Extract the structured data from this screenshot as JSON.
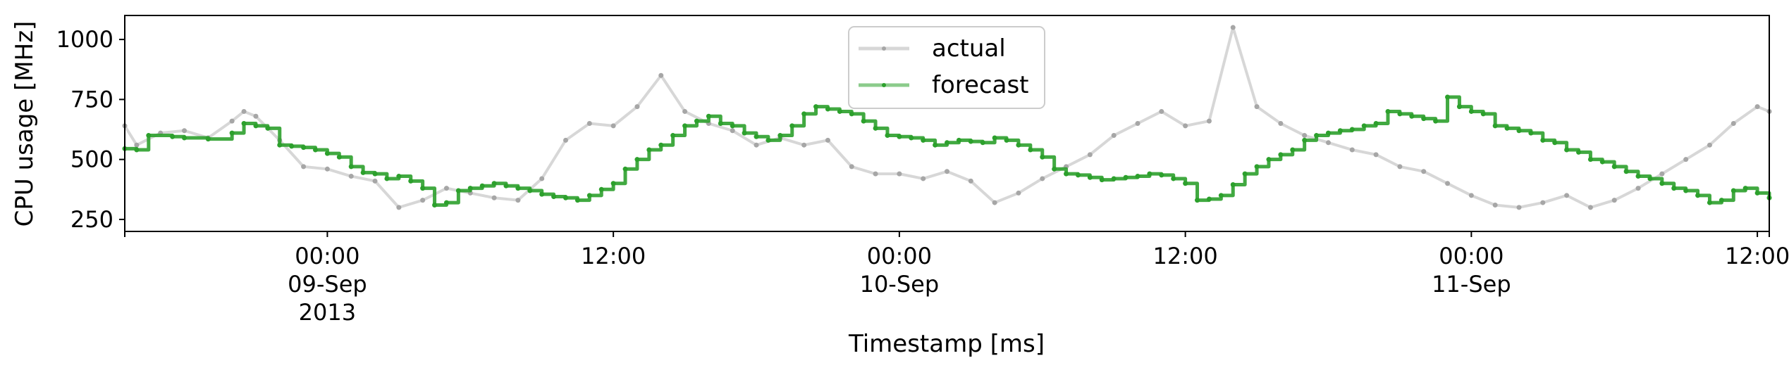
{
  "chart_data": {
    "type": "line",
    "title": "",
    "xlabel": "Timestamp [ms]",
    "ylabel": "CPU usage [MHz]",
    "x_range": [
      "2013-09-08T15:30",
      "2013-09-11T12:30"
    ],
    "ylim": [
      200,
      1100
    ],
    "grid": false,
    "legend_position": "top-center",
    "y_ticks": [
      {
        "value": 250,
        "label": "250"
      },
      {
        "value": 500,
        "label": "500"
      },
      {
        "value": 750,
        "label": "750"
      },
      {
        "value": 1000,
        "label": "1000"
      }
    ],
    "x_ticks": [
      {
        "value": "2013-09-09T00:00",
        "lines": [
          "00:00",
          "09-Sep",
          "2013"
        ]
      },
      {
        "value": "2013-09-09T12:00",
        "lines": [
          "12:00"
        ]
      },
      {
        "value": "2013-09-10T00:00",
        "lines": [
          "00:00",
          "10-Sep"
        ]
      },
      {
        "value": "2013-09-10T12:00",
        "lines": [
          "12:00"
        ]
      },
      {
        "value": "2013-09-11T00:00",
        "lines": [
          "00:00",
          "11-Sep"
        ]
      },
      {
        "value": "2013-09-11T12:00",
        "lines": [
          "12:00"
        ]
      }
    ],
    "series": [
      {
        "name": "actual",
        "color": "#a6a6a6",
        "x": [
          "2013-09-08T15:30",
          "2013-09-08T16:00",
          "2013-09-08T17:00",
          "2013-09-08T18:00",
          "2013-09-08T19:00",
          "2013-09-08T20:00",
          "2013-09-08T20:30",
          "2013-09-08T21:00",
          "2013-09-08T22:00",
          "2013-09-08T23:00",
          "2013-09-09T00:00",
          "2013-09-09T01:00",
          "2013-09-09T02:00",
          "2013-09-09T03:00",
          "2013-09-09T04:00",
          "2013-09-09T05:00",
          "2013-09-09T06:00",
          "2013-09-09T07:00",
          "2013-09-09T08:00",
          "2013-09-09T09:00",
          "2013-09-09T10:00",
          "2013-09-09T11:00",
          "2013-09-09T12:00",
          "2013-09-09T13:00",
          "2013-09-09T14:00",
          "2013-09-09T15:00",
          "2013-09-09T16:00",
          "2013-09-09T17:00",
          "2013-09-09T18:00",
          "2013-09-09T19:00",
          "2013-09-09T20:00",
          "2013-09-09T21:00",
          "2013-09-09T22:00",
          "2013-09-09T23:00",
          "2013-09-10T00:00",
          "2013-09-10T01:00",
          "2013-09-10T02:00",
          "2013-09-10T03:00",
          "2013-09-10T04:00",
          "2013-09-10T05:00",
          "2013-09-10T06:00",
          "2013-09-10T07:00",
          "2013-09-10T08:00",
          "2013-09-10T09:00",
          "2013-09-10T10:00",
          "2013-09-10T11:00",
          "2013-09-10T12:00",
          "2013-09-10T13:00",
          "2013-09-10T14:00",
          "2013-09-10T15:00",
          "2013-09-10T16:00",
          "2013-09-10T17:00",
          "2013-09-10T18:00",
          "2013-09-10T19:00",
          "2013-09-10T20:00",
          "2013-09-10T21:00",
          "2013-09-10T22:00",
          "2013-09-10T23:00",
          "2013-09-11T00:00",
          "2013-09-11T01:00",
          "2013-09-11T02:00",
          "2013-09-11T03:00",
          "2013-09-11T04:00",
          "2013-09-11T05:00",
          "2013-09-11T06:00",
          "2013-09-11T07:00",
          "2013-09-11T08:00",
          "2013-09-11T09:00",
          "2013-09-11T10:00",
          "2013-09-11T11:00",
          "2013-09-11T12:00",
          "2013-09-11T12:30"
        ],
        "values": [
          640,
          560,
          610,
          620,
          590,
          660,
          700,
          680,
          580,
          470,
          460,
          430,
          410,
          300,
          330,
          380,
          360,
          340,
          330,
          420,
          580,
          650,
          640,
          720,
          850,
          700,
          650,
          620,
          560,
          590,
          560,
          580,
          470,
          440,
          440,
          420,
          450,
          410,
          320,
          360,
          420,
          470,
          520,
          600,
          650,
          700,
          640,
          660,
          1050,
          720,
          650,
          600,
          570,
          540,
          520,
          470,
          450,
          400,
          350,
          310,
          300,
          320,
          350,
          300,
          330,
          380,
          440,
          500,
          560,
          650,
          720,
          700
        ]
      },
      {
        "name": "forecast",
        "color": "#2ca02c",
        "x": [
          "2013-09-08T15:30",
          "2013-09-08T16:00",
          "2013-09-08T16:30",
          "2013-09-08T17:30",
          "2013-09-08T18:00",
          "2013-09-08T19:00",
          "2013-09-08T20:00",
          "2013-09-08T20:30",
          "2013-09-08T21:00",
          "2013-09-08T21:30",
          "2013-09-08T22:00",
          "2013-09-08T22:30",
          "2013-09-08T23:00",
          "2013-09-08T23:30",
          "2013-09-09T00:00",
          "2013-09-09T00:30",
          "2013-09-09T01:00",
          "2013-09-09T01:30",
          "2013-09-09T02:00",
          "2013-09-09T02:30",
          "2013-09-09T03:00",
          "2013-09-09T03:30",
          "2013-09-09T04:00",
          "2013-09-09T04:30",
          "2013-09-09T05:00",
          "2013-09-09T05:30",
          "2013-09-09T06:00",
          "2013-09-09T06:30",
          "2013-09-09T07:00",
          "2013-09-09T07:30",
          "2013-09-09T08:00",
          "2013-09-09T08:30",
          "2013-09-09T09:00",
          "2013-09-09T09:30",
          "2013-09-09T10:00",
          "2013-09-09T10:30",
          "2013-09-09T11:00",
          "2013-09-09T11:30",
          "2013-09-09T12:00",
          "2013-09-09T12:30",
          "2013-09-09T13:00",
          "2013-09-09T13:30",
          "2013-09-09T14:00",
          "2013-09-09T14:30",
          "2013-09-09T15:00",
          "2013-09-09T15:30",
          "2013-09-09T16:00",
          "2013-09-09T16:30",
          "2013-09-09T17:00",
          "2013-09-09T17:30",
          "2013-09-09T18:00",
          "2013-09-09T18:30",
          "2013-09-09T19:00",
          "2013-09-09T19:30",
          "2013-09-09T20:00",
          "2013-09-09T20:30",
          "2013-09-09T21:00",
          "2013-09-09T21:30",
          "2013-09-09T22:00",
          "2013-09-09T22:30",
          "2013-09-09T23:00",
          "2013-09-09T23:30",
          "2013-09-10T00:00",
          "2013-09-10T00:30",
          "2013-09-10T01:00",
          "2013-09-10T01:30",
          "2013-09-10T02:00",
          "2013-09-10T02:30",
          "2013-09-10T03:00",
          "2013-09-10T03:30",
          "2013-09-10T04:00",
          "2013-09-10T04:30",
          "2013-09-10T05:00",
          "2013-09-10T05:30",
          "2013-09-10T06:00",
          "2013-09-10T06:30",
          "2013-09-10T07:00",
          "2013-09-10T07:30",
          "2013-09-10T08:00",
          "2013-09-10T08:30",
          "2013-09-10T09:00",
          "2013-09-10T09:30",
          "2013-09-10T10:00",
          "2013-09-10T10:30",
          "2013-09-10T11:00",
          "2013-09-10T11:30",
          "2013-09-10T12:00",
          "2013-09-10T12:30",
          "2013-09-10T13:00",
          "2013-09-10T13:30",
          "2013-09-10T14:00",
          "2013-09-10T14:30",
          "2013-09-10T15:00",
          "2013-09-10T15:30",
          "2013-09-10T16:00",
          "2013-09-10T16:30",
          "2013-09-10T17:00",
          "2013-09-10T17:30",
          "2013-09-10T18:00",
          "2013-09-10T18:30",
          "2013-09-10T19:00",
          "2013-09-10T19:30",
          "2013-09-10T20:00",
          "2013-09-10T20:30",
          "2013-09-10T21:00",
          "2013-09-10T21:30",
          "2013-09-10T22:00",
          "2013-09-10T22:30",
          "2013-09-10T23:00",
          "2013-09-10T23:30",
          "2013-09-11T00:00",
          "2013-09-11T00:30",
          "2013-09-11T01:00",
          "2013-09-11T01:30",
          "2013-09-11T02:00",
          "2013-09-11T02:30",
          "2013-09-11T03:00",
          "2013-09-11T03:30",
          "2013-09-11T04:00",
          "2013-09-11T04:30",
          "2013-09-11T05:00",
          "2013-09-11T05:30",
          "2013-09-11T06:00",
          "2013-09-11T06:30",
          "2013-09-11T07:00",
          "2013-09-11T07:30",
          "2013-09-11T08:00",
          "2013-09-11T08:30",
          "2013-09-11T09:00",
          "2013-09-11T09:30",
          "2013-09-11T10:00",
          "2013-09-11T10:30",
          "2013-09-11T11:00",
          "2013-09-11T11:30",
          "2013-09-11T12:00",
          "2013-09-11T12:30"
        ],
        "values": [
          545,
          540,
          600,
          595,
          590,
          585,
          610,
          650,
          640,
          630,
          560,
          555,
          550,
          540,
          525,
          510,
          470,
          445,
          440,
          420,
          430,
          410,
          380,
          310,
          320,
          370,
          380,
          390,
          400,
          390,
          380,
          370,
          355,
          345,
          340,
          330,
          350,
          375,
          400,
          460,
          500,
          540,
          560,
          600,
          640,
          660,
          680,
          650,
          640,
          610,
          595,
          580,
          600,
          640,
          690,
          720,
          710,
          700,
          690,
          660,
          630,
          600,
          595,
          590,
          580,
          560,
          570,
          580,
          575,
          570,
          590,
          580,
          560,
          540,
          510,
          460,
          440,
          435,
          425,
          415,
          420,
          425,
          430,
          440,
          435,
          420,
          400,
          330,
          335,
          350,
          395,
          440,
          470,
          500,
          520,
          540,
          580,
          600,
          610,
          620,
          625,
          640,
          650,
          700,
          690,
          680,
          670,
          660,
          760,
          720,
          700,
          690,
          640,
          630,
          620,
          610,
          580,
          570,
          540,
          530,
          500,
          490,
          470,
          450,
          430,
          420,
          400,
          380,
          370,
          350,
          320,
          330,
          370,
          380,
          360,
          340
        ]
      }
    ]
  }
}
